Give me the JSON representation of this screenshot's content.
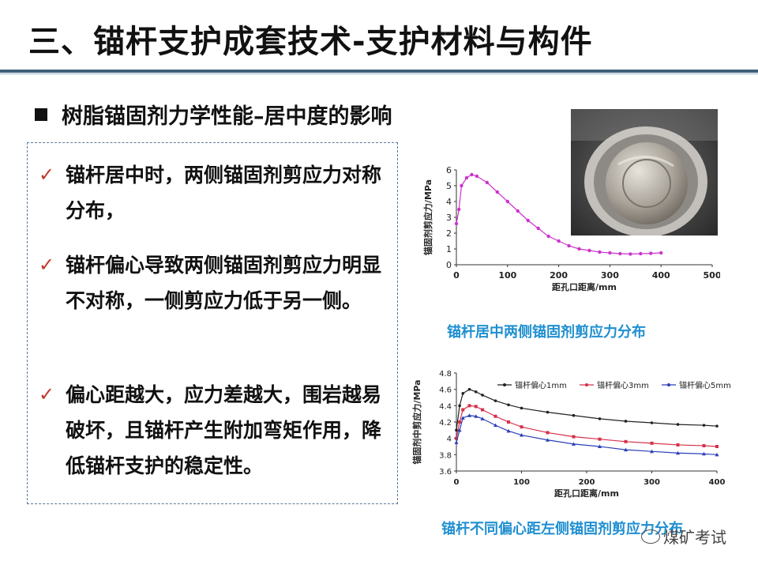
{
  "header": {
    "title": "三、锚杆支护成套技术-支护材料与构件"
  },
  "section": {
    "heading": "树脂锚固剂力学性能–居中度的影响"
  },
  "bullets": [
    {
      "check": "✓",
      "text": "锚杆居中时，两侧锚固剂剪应力对称分布，"
    },
    {
      "check": "✓",
      "text": "锚杆偏心导致两侧锚固剂剪应力明显不对称，一侧剪应力低于另一侧。"
    },
    {
      "check": "✓",
      "text": "偏心距越大，应力差越大，围岩越易破坏，且锚杆产生附加弯矩作用，降低锚杆支护的稳定性。"
    }
  ],
  "captions": {
    "chart1": "锚杆居中两侧锚固剂剪应力分布",
    "chart2": "锚杆不同偏心距左侧锚固剂剪应力分布"
  },
  "watermark": "煤矿考试",
  "colors": {
    "accent": "#1f8fd0",
    "check": "#c0392b",
    "rule": "#3f5f7a"
  },
  "chart_data": [
    {
      "type": "line",
      "title": "",
      "xlabel": "距孔口距离/mm",
      "ylabel": "锚固剂剪应力/MPa",
      "xlim": [
        0,
        500
      ],
      "ylim": [
        0,
        6
      ],
      "xticks": [
        "0",
        "100",
        "200",
        "300",
        "400",
        "500"
      ],
      "yticks": [
        "0",
        "1",
        "2",
        "3",
        "4",
        "5",
        "6"
      ],
      "grid": false,
      "series": [
        {
          "name": "",
          "color": "#cc33cc",
          "x": [
            0,
            5,
            10,
            20,
            30,
            40,
            60,
            80,
            100,
            120,
            140,
            160,
            180,
            200,
            220,
            240,
            260,
            280,
            300,
            320,
            340,
            360,
            380,
            400
          ],
          "y": [
            2.6,
            3.5,
            5.0,
            5.5,
            5.7,
            5.6,
            5.2,
            4.6,
            4.0,
            3.4,
            2.8,
            2.3,
            1.8,
            1.5,
            1.2,
            1.0,
            0.9,
            0.8,
            0.75,
            0.7,
            0.68,
            0.7,
            0.72,
            0.75
          ]
        }
      ]
    },
    {
      "type": "line",
      "title": "",
      "xlabel": "距孔口距离/mm",
      "ylabel": "锚固剂中剪应力/MPa",
      "xlim": [
        0,
        400
      ],
      "ylim": [
        3.6,
        4.8
      ],
      "xticks": [
        "0",
        "100",
        "200",
        "300",
        "400"
      ],
      "yticks": [
        "3.6",
        "3.8",
        "4",
        "4.2",
        "4.4",
        "4.6",
        "4.8"
      ],
      "grid": false,
      "legend": "top",
      "series": [
        {
          "name": "锚杆偏心1mm",
          "color": "#222222",
          "x": [
            0,
            5,
            10,
            20,
            30,
            40,
            60,
            80,
            100,
            140,
            180,
            220,
            260,
            300,
            340,
            380,
            400
          ],
          "y": [
            4.1,
            4.4,
            4.55,
            4.6,
            4.57,
            4.53,
            4.46,
            4.41,
            4.37,
            4.32,
            4.28,
            4.24,
            4.21,
            4.19,
            4.17,
            4.16,
            4.15
          ]
        },
        {
          "name": "锚杆偏心3mm",
          "color": "#d6304a",
          "x": [
            0,
            5,
            10,
            20,
            30,
            40,
            60,
            80,
            100,
            140,
            180,
            220,
            260,
            300,
            340,
            380,
            400
          ],
          "y": [
            4.0,
            4.2,
            4.35,
            4.4,
            4.39,
            4.35,
            4.27,
            4.2,
            4.14,
            4.07,
            4.02,
            3.99,
            3.96,
            3.94,
            3.92,
            3.91,
            3.9
          ]
        },
        {
          "name": "锚杆偏心5mm",
          "color": "#2a3fb8",
          "x": [
            0,
            5,
            10,
            20,
            30,
            40,
            60,
            80,
            100,
            140,
            180,
            220,
            260,
            300,
            340,
            380,
            400
          ],
          "y": [
            3.95,
            4.1,
            4.25,
            4.28,
            4.27,
            4.24,
            4.16,
            4.09,
            4.04,
            3.98,
            3.93,
            3.9,
            3.86,
            3.84,
            3.82,
            3.81,
            3.8
          ]
        }
      ]
    }
  ]
}
